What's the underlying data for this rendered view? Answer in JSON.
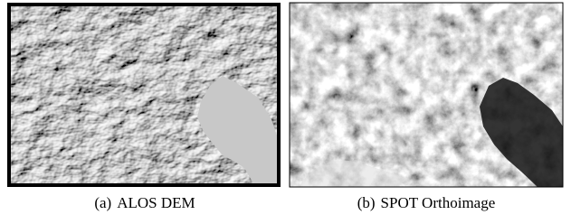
{
  "figure": {
    "subfigures": [
      {
        "label": "(a)",
        "caption": "ALOS DEM"
      },
      {
        "label": "(b)",
        "caption": "SPOT Orthoimage"
      }
    ]
  }
}
